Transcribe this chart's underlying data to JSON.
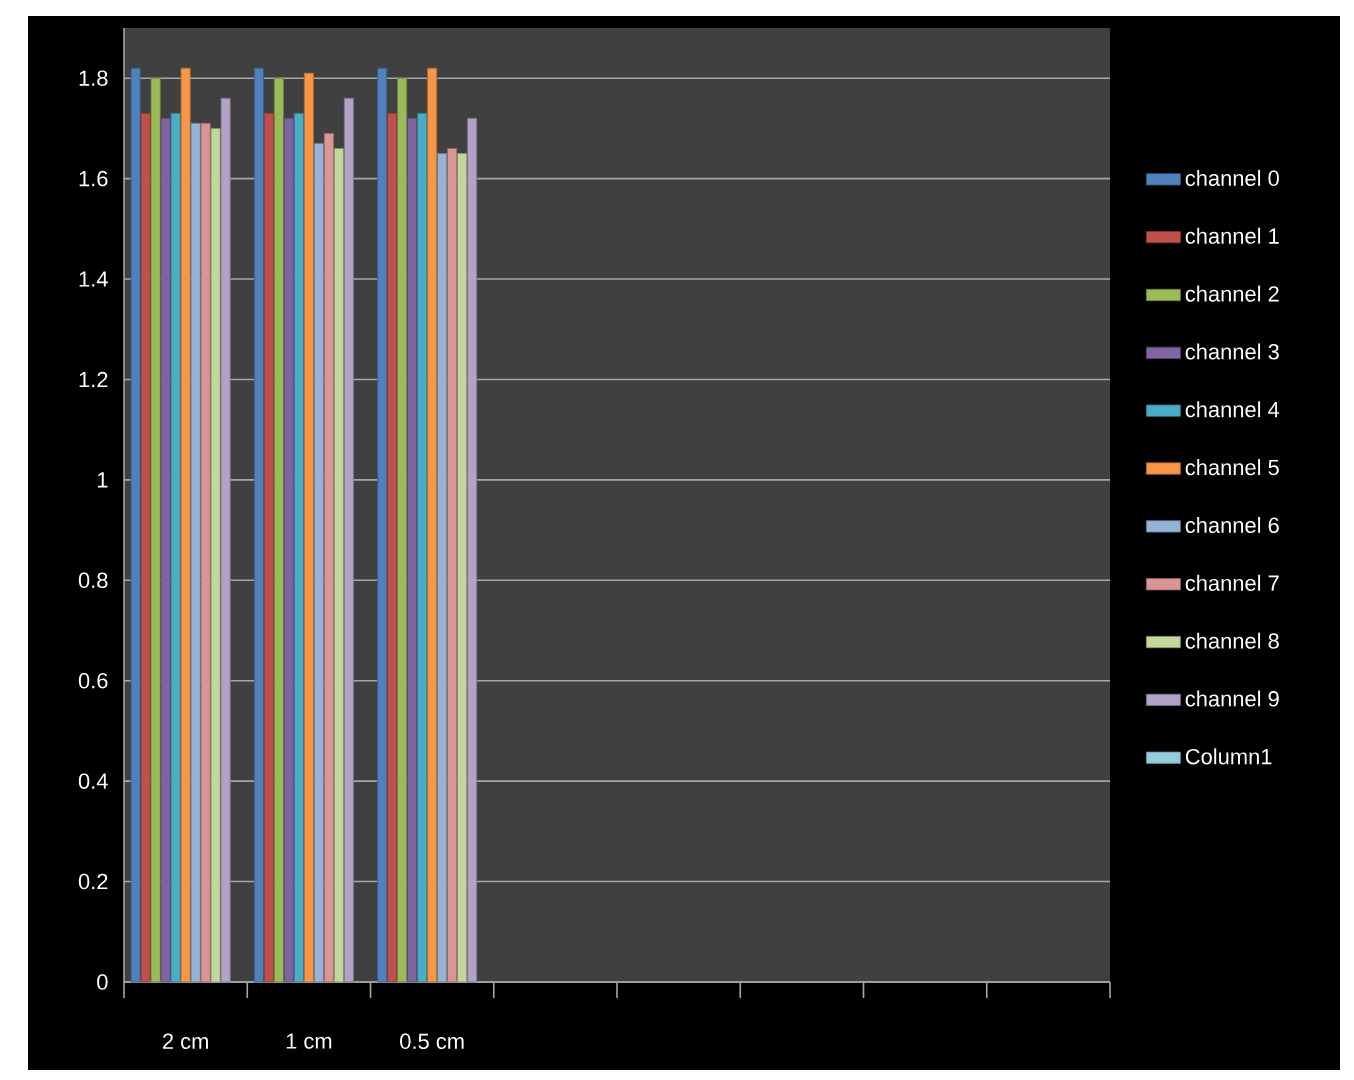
{
  "chart_data": {
    "type": "bar",
    "categories": [
      "2 cm",
      "1 cm",
      "0.5 cm",
      null,
      null,
      null,
      null,
      null
    ],
    "series": [
      {
        "name": "channel 0",
        "color": "#4f81bd",
        "values": [
          1.82,
          1.82,
          1.82,
          null,
          null,
          null,
          null,
          null
        ]
      },
      {
        "name": "channel 1",
        "color": "#c0504d",
        "values": [
          1.73,
          1.73,
          1.73,
          null,
          null,
          null,
          null,
          null
        ]
      },
      {
        "name": "channel 2",
        "color": "#9bbb59",
        "values": [
          1.8,
          1.8,
          1.8,
          null,
          null,
          null,
          null,
          null
        ]
      },
      {
        "name": "channel 3",
        "color": "#8064a2",
        "values": [
          1.72,
          1.72,
          1.72,
          null,
          null,
          null,
          null,
          null
        ]
      },
      {
        "name": "channel 4",
        "color": "#4bacc6",
        "values": [
          1.73,
          1.73,
          1.73,
          null,
          null,
          null,
          null,
          null
        ]
      },
      {
        "name": "channel 5",
        "color": "#f79646",
        "values": [
          1.82,
          1.81,
          1.82,
          null,
          null,
          null,
          null,
          null
        ]
      },
      {
        "name": "channel 6",
        "color": "#95b3d7",
        "values": [
          1.71,
          1.67,
          1.65,
          null,
          null,
          null,
          null,
          null
        ]
      },
      {
        "name": "channel 7",
        "color": "#da9694",
        "values": [
          1.71,
          1.69,
          1.66,
          null,
          null,
          null,
          null,
          null
        ]
      },
      {
        "name": "channel 8",
        "color": "#c3d69b",
        "values": [
          1.7,
          1.66,
          1.65,
          null,
          null,
          null,
          null,
          null
        ]
      },
      {
        "name": "channel 9",
        "color": "#b2a2c7",
        "values": [
          1.76,
          1.76,
          1.72,
          null,
          null,
          null,
          null,
          null
        ]
      },
      {
        "name": "Column1",
        "color": "#92cddc",
        "values": [
          null,
          null,
          null,
          null,
          null,
          null,
          null,
          null
        ]
      }
    ],
    "ylim": [
      0,
      1.9
    ],
    "yticks": [
      0,
      0.2,
      0.4,
      0.6,
      0.8,
      1,
      1.2,
      1.4,
      1.6,
      1.8
    ],
    "grid": "y",
    "legend": "right"
  }
}
